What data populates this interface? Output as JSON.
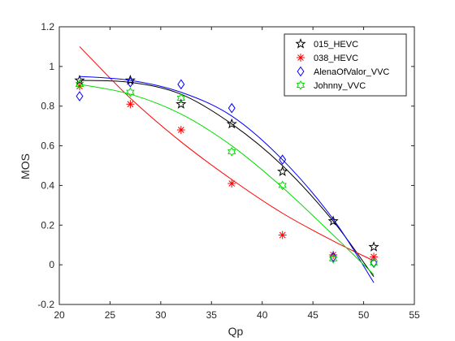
{
  "chart_data": {
    "type": "scatter",
    "title": "",
    "xlabel": "Qp",
    "ylabel": "MOS",
    "xlim": [
      20,
      55
    ],
    "ylim": [
      -0.2,
      1.2
    ],
    "xticks": [
      20,
      25,
      30,
      35,
      40,
      45,
      50,
      55
    ],
    "yticks": [
      -0.2,
      0,
      0.2,
      0.4,
      0.6,
      0.8,
      1,
      1.2
    ],
    "xtick_labels": [
      "20",
      "25",
      "30",
      "35",
      "40",
      "45",
      "50",
      "55"
    ],
    "ytick_labels": [
      "-0.2",
      "0",
      "0.2",
      "0.4",
      "0.6",
      "0.8",
      "1",
      "1.2"
    ],
    "grid": false,
    "legend_position": "top-right",
    "series": [
      {
        "name": "015_HEVC",
        "color": "#000000",
        "marker": "star",
        "x": [
          22,
          27,
          32,
          37,
          42,
          47,
          51
        ],
        "y": [
          0.93,
          0.93,
          0.81,
          0.71,
          0.47,
          0.22,
          0.09
        ],
        "fit_curve": [
          [
            22,
            0.93
          ],
          [
            27,
            0.92
          ],
          [
            32,
            0.86
          ],
          [
            37,
            0.71
          ],
          [
            42,
            0.5
          ],
          [
            47,
            0.22
          ],
          [
            51,
            -0.06
          ]
        ]
      },
      {
        "name": "038_HEVC",
        "color": "#ff0000",
        "marker": "asterisk",
        "x": [
          22,
          27,
          32,
          37,
          42,
          47,
          51
        ],
        "y": [
          0.9,
          0.81,
          0.68,
          0.41,
          0.15,
          0.05,
          0.04
        ],
        "fit_curve": [
          [
            22,
            1.1
          ],
          [
            27,
            0.84
          ],
          [
            32,
            0.62
          ],
          [
            37,
            0.43
          ],
          [
            42,
            0.26
          ],
          [
            47,
            0.12
          ],
          [
            51,
            0.02
          ]
        ]
      },
      {
        "name": "AlenaOfValor_VVC",
        "color": "#0000ff",
        "marker": "diamond",
        "x": [
          22,
          27,
          32,
          37,
          42,
          47,
          51
        ],
        "y": [
          0.85,
          0.92,
          0.91,
          0.79,
          0.53,
          0.04,
          0.01
        ],
        "fit_curve": [
          [
            22,
            0.95
          ],
          [
            27,
            0.93
          ],
          [
            32,
            0.87
          ],
          [
            37,
            0.75
          ],
          [
            42,
            0.53
          ],
          [
            47,
            0.23
          ],
          [
            51,
            -0.09
          ]
        ]
      },
      {
        "name": "Johnny_VVC",
        "color": "#00dd00",
        "marker": "hexagram",
        "x": [
          22,
          27,
          32,
          37,
          42,
          47,
          51
        ],
        "y": [
          0.91,
          0.87,
          0.84,
          0.57,
          0.4,
          0.03,
          0.01
        ],
        "fit_curve": [
          [
            22,
            0.91
          ],
          [
            27,
            0.86
          ],
          [
            32,
            0.76
          ],
          [
            37,
            0.6
          ],
          [
            42,
            0.39
          ],
          [
            47,
            0.15
          ],
          [
            51,
            -0.05
          ]
        ]
      }
    ]
  }
}
